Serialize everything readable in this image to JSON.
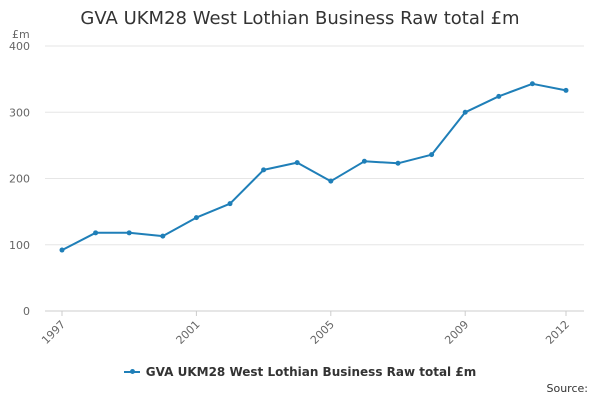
{
  "chart_data": {
    "type": "line",
    "title": "GVA UKM28 West Lothian Business Raw total £m",
    "ylabel": "£m",
    "xlabel": "",
    "x": [
      1997,
      1998,
      1999,
      2000,
      2001,
      2002,
      2003,
      2004,
      2005,
      2006,
      2007,
      2008,
      2009,
      2010,
      2011,
      2012
    ],
    "x_ticks": [
      "1997",
      "2001",
      "2005",
      "2009",
      "2012"
    ],
    "y_ticks": [
      "0",
      "100",
      "200",
      "300",
      "400"
    ],
    "ylim": [
      0,
      400
    ],
    "xlim": [
      1997,
      2012
    ],
    "grid": "horizontal",
    "legend_position": "bottom",
    "series": [
      {
        "name": "GVA UKM28 West Lothian Business Raw total £m",
        "color": "#1f7fb8",
        "values": [
          92,
          118,
          118,
          113,
          141,
          162,
          213,
          224,
          196,
          226,
          223,
          236,
          300,
          324,
          343,
          333
        ]
      }
    ],
    "source": "Source:"
  }
}
